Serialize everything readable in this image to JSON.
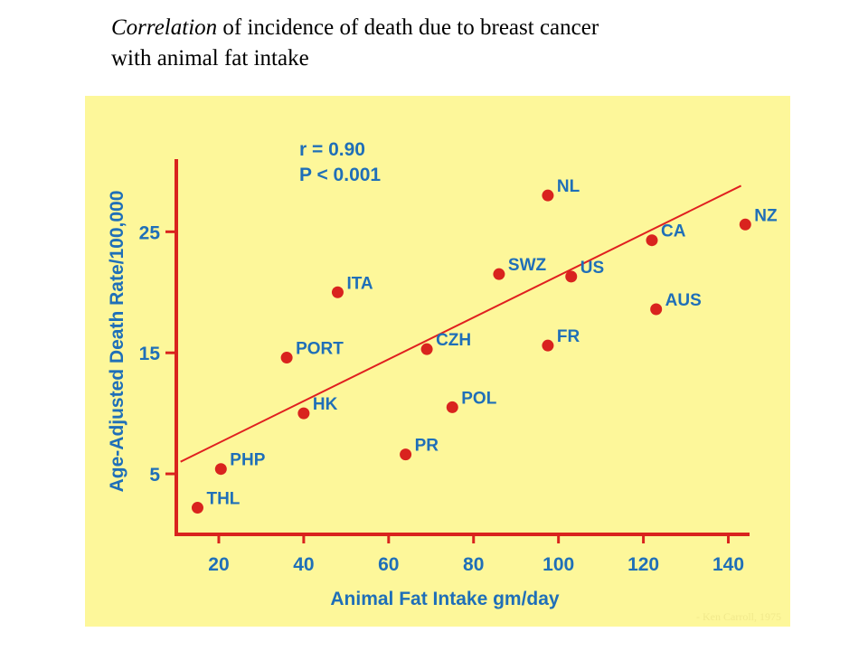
{
  "slide": {
    "title_italic": "Correlation",
    "title_rest": " of incidence of death due to breast cancer",
    "title_line2": "with animal fat intake"
  },
  "colors": {
    "panel_bg": "#fdf79a",
    "axis": "#d9231e",
    "point": "#d9231e",
    "label": "#1f6fb8",
    "fit_line": "#e02020",
    "stat_text": "#1f6fb8"
  },
  "chart_data": {
    "type": "scatter",
    "title": "",
    "xlabel": "Animal Fat Intake gm/day",
    "ylabel": "Age-Adjusted Death Rate/100,000",
    "xlim": [
      10,
      145
    ],
    "ylim": [
      0,
      31
    ],
    "xticks": [
      20,
      40,
      60,
      80,
      100,
      120,
      140
    ],
    "yticks": [
      5,
      15,
      25
    ],
    "stats": [
      "r = 0.90",
      "P < 0.001"
    ],
    "credit": "- Ken Carroll, 1975",
    "points": [
      {
        "label": "THL",
        "x": 15,
        "y": 2.2
      },
      {
        "label": "PHP",
        "x": 20.5,
        "y": 5.4
      },
      {
        "label": "HK",
        "x": 40,
        "y": 10.0
      },
      {
        "label": "PORT",
        "x": 36,
        "y": 14.6
      },
      {
        "label": "ITA",
        "x": 48,
        "y": 20.0
      },
      {
        "label": "CZH",
        "x": 69,
        "y": 15.3
      },
      {
        "label": "PR",
        "x": 64,
        "y": 6.6
      },
      {
        "label": "POL",
        "x": 75,
        "y": 10.5
      },
      {
        "label": "SWZ",
        "x": 86,
        "y": 21.5
      },
      {
        "label": "NL",
        "x": 97.5,
        "y": 28.0
      },
      {
        "label": "FR",
        "x": 97.5,
        "y": 15.6
      },
      {
        "label": "US",
        "x": 103,
        "y": 21.3
      },
      {
        "label": "CA",
        "x": 122,
        "y": 24.3
      },
      {
        "label": "AUS",
        "x": 123,
        "y": 18.6
      },
      {
        "label": "NZ",
        "x": 144,
        "y": 25.6
      }
    ],
    "fit_line": {
      "x": [
        11,
        143
      ],
      "y": [
        6.0,
        28.8
      ]
    }
  }
}
